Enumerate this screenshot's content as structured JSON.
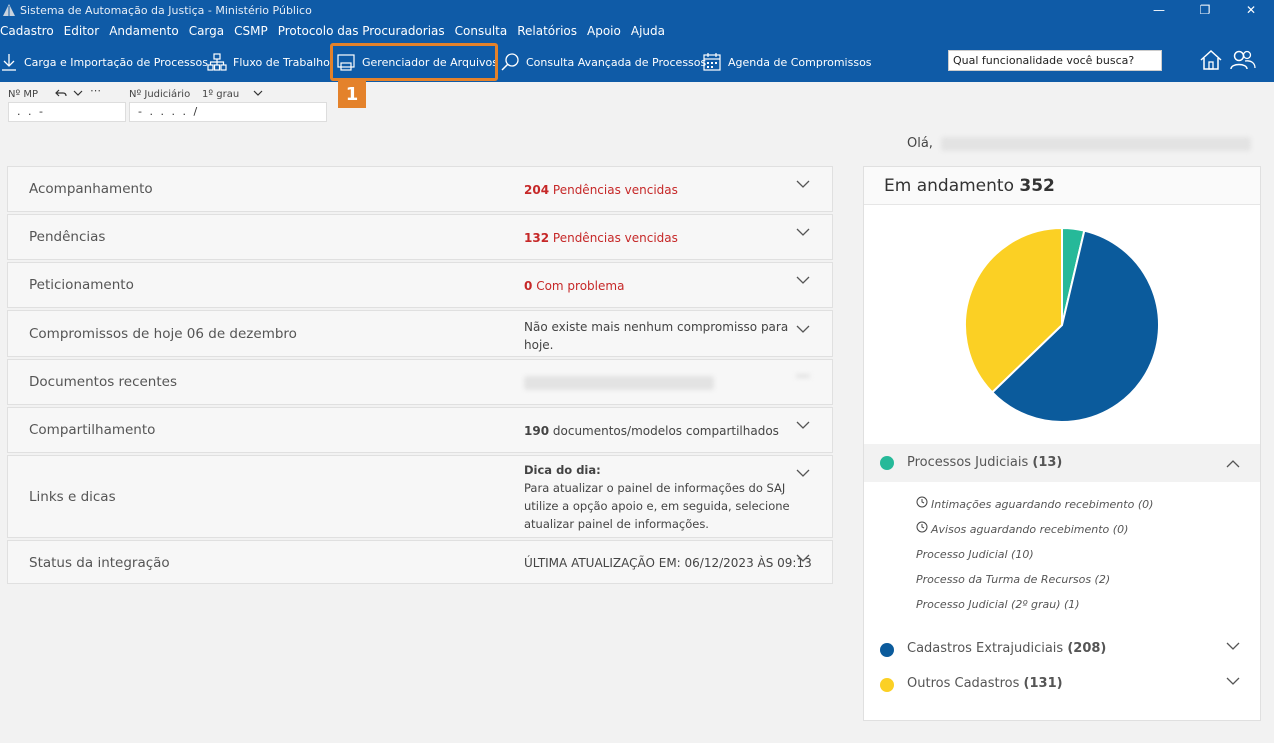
{
  "window": {
    "title": "Sistema de Automação da Justiça - Ministério Público"
  },
  "menu": [
    "Cadastro",
    "Editor",
    "Andamento",
    "Carga",
    "CSMP",
    "Protocolo das Procuradorias",
    "Consulta",
    "Relatórios",
    "Apoio",
    "Ajuda"
  ],
  "toolbar": {
    "carga": "Carga e Importação de Processos",
    "fluxo": "Fluxo de Trabalho",
    "gerenciador": "Gerenciador de Arquivos",
    "consulta": "Consulta Avançada de Processos",
    "agenda": "Agenda de Compromissos",
    "search_value": "Qual funcionalidade você busca?",
    "highlight_badge": "1"
  },
  "fields": {
    "mp_label": "Nº MP",
    "mp_value": ".  .  -",
    "judicial_label": "Nº Judiciário",
    "judicial_grau": "1º grau",
    "judicial_value": "- .  .  .  .  /"
  },
  "greeting": "Olá,",
  "panels": {
    "acompanhamento": {
      "title": "Acompanhamento",
      "count": "204",
      "status": "Pendências vencidas"
    },
    "pendencias": {
      "title": "Pendências",
      "count": "132",
      "status": "Pendências vencidas"
    },
    "peticionamento": {
      "title": "Peticionamento",
      "count": "0",
      "status": "Com problema"
    },
    "compromissos": {
      "title": "Compromissos de hoje 06 de dezembro",
      "status_line1": "Não existe mais nenhum compromisso para",
      "status_line2": "hoje."
    },
    "documentos": {
      "title": "Documentos recentes"
    },
    "compartilhamento": {
      "title": "Compartilhamento",
      "count": "190",
      "status": "documentos/modelos compartilhados"
    },
    "links": {
      "title": "Links e dicas",
      "tip_title": "Dica do dia:",
      "tip_line1": "Para atualizar o painel de informações do SAJ",
      "tip_line2": "utilize a opção apoio e, em seguida, selecione",
      "tip_line3": "atualizar painel de informações."
    },
    "status": {
      "title": "Status da integração",
      "status": "ÚLTIMA ATUALIZAÇÃO EM: 06/12/2023 ÀS 09:13"
    }
  },
  "andamento": {
    "label": "Em andamento",
    "total": "352",
    "processos": {
      "label": "Processos Judiciais",
      "count": "(13)",
      "color": "#26b999"
    },
    "sub_items": [
      "Intimações aguardando recebimento (0)",
      "Avisos aguardando recebimento (0)",
      "Processo Judicial (10)",
      "Processo da Turma de Recursos (2)",
      "Processo Judicial (2º grau) (1)"
    ],
    "extrajudiciais": {
      "label": "Cadastros Extrajudiciais",
      "count": "(208)",
      "color": "#0b5b9c"
    },
    "outros": {
      "label": "Outros Cadastros",
      "count": "(131)",
      "color": "#fbd024"
    }
  },
  "chart_data": {
    "type": "pie",
    "title": "",
    "slices": [
      {
        "name": "Processos Judiciais",
        "value": 13,
        "color": "#26b999"
      },
      {
        "name": "Cadastros Extrajudiciais",
        "value": 208,
        "color": "#0b5b9c"
      },
      {
        "name": "Outros Cadastros",
        "value": 131,
        "color": "#fbd024"
      }
    ]
  }
}
